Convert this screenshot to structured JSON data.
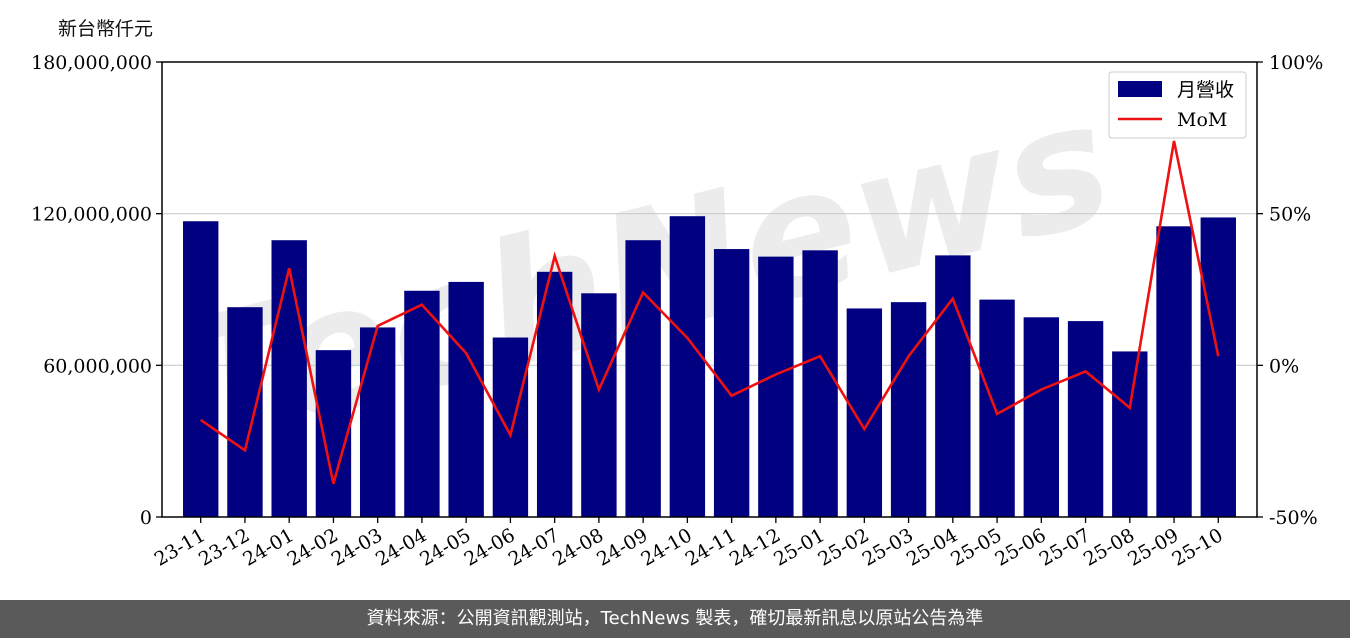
{
  "unit_label": "新台幣仟元",
  "watermark": "TechNews",
  "footer_text": "資料來源：公開資訊觀測站，TechNews 製表，確切最新訊息以原站公告為準",
  "chart_data": {
    "type": "bar",
    "categories": [
      "23-11",
      "23-12",
      "24-01",
      "24-02",
      "24-03",
      "24-04",
      "24-05",
      "24-06",
      "24-07",
      "24-08",
      "24-09",
      "24-10",
      "24-11",
      "24-12",
      "25-01",
      "25-02",
      "25-03",
      "25-04",
      "25-05",
      "25-06",
      "25-07",
      "25-08",
      "25-09",
      "25-10"
    ],
    "series": [
      {
        "name": "月營收",
        "type": "bar",
        "axis": "left",
        "color": "#000080",
        "values": [
          117000000,
          83000000,
          109500000,
          66000000,
          75000000,
          89500000,
          93000000,
          71000000,
          97000000,
          88500000,
          109500000,
          119000000,
          106000000,
          103000000,
          105500000,
          82500000,
          85000000,
          103500000,
          86000000,
          79000000,
          77500000,
          65500000,
          115000000,
          118500000
        ]
      },
      {
        "name": "MoM",
        "type": "line",
        "axis": "right",
        "color": "#ee1111",
        "unit": "%",
        "values": [
          -18,
          -28,
          32,
          -39,
          13,
          20,
          4,
          -23,
          36,
          -8,
          24,
          9,
          -10,
          -3,
          3,
          -21,
          3,
          22,
          -16,
          -8,
          -2,
          -14,
          74,
          3
        ]
      }
    ],
    "y_left": {
      "ticks": [
        "0",
        "60,000,000",
        "120,000,000",
        "180,000,000"
      ],
      "tick_values": [
        0,
        60000000,
        120000000,
        180000000
      ],
      "range": [
        0,
        180000000
      ]
    },
    "y_right": {
      "ticks": [
        "-50%",
        "0%",
        "50%",
        "100%"
      ],
      "tick_values": [
        -50,
        0,
        50,
        100
      ],
      "range": [
        -50,
        100
      ]
    },
    "grid": "horizontal",
    "legend": "top-right"
  }
}
